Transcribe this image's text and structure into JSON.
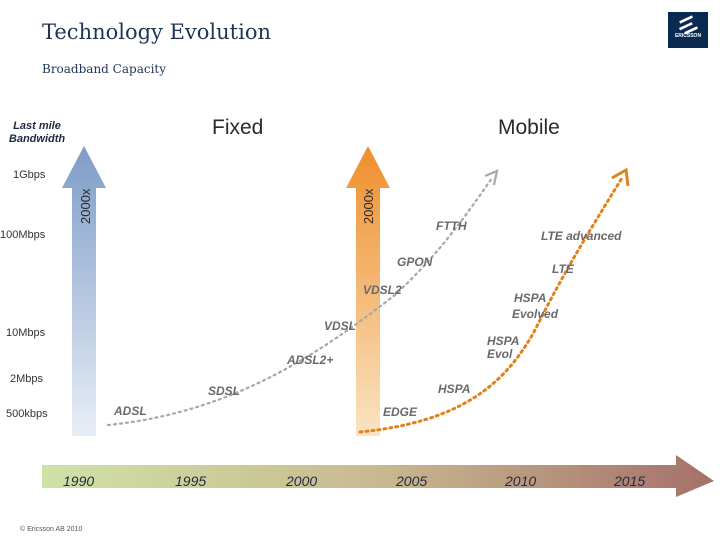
{
  "header": {
    "title": "Technology Evolution",
    "subtitle": "Broadband Capacity",
    "logo_text": "ERICSSON"
  },
  "columns": {
    "fixed": "Fixed",
    "mobile": "Mobile",
    "y_axis_title": "Last mile Bandwidth",
    "fixed_growth": "2000x",
    "mobile_growth": "2000x"
  },
  "chart_data": {
    "type": "line",
    "title": "Broadband Capacity",
    "ylabel": "Last mile Bandwidth",
    "y_ticks": [
      "1Gbps",
      "100Mbps",
      "10Mbps",
      "2Mbps",
      "500kbps"
    ],
    "x_ticks": [
      "1990",
      "1995",
      "2000",
      "2005",
      "2010",
      "2015"
    ],
    "series": [
      {
        "name": "Fixed",
        "color": "#a8a8a8",
        "technologies": [
          "ADSL",
          "SDSL",
          "ADSL2+",
          "VDSL",
          "VDSL2",
          "GPON",
          "FTTH"
        ]
      },
      {
        "name": "Mobile",
        "color": "#e0831c",
        "technologies": [
          "EDGE",
          "HSPA",
          "HSPA Evol",
          "HSPA Evolved",
          "LTE",
          "LTE advanced"
        ]
      }
    ],
    "annotations": [
      "2000x",
      "2000x"
    ]
  },
  "tech_labels": {
    "adsl": "ADSL",
    "sdsl": "SDSL",
    "adsl2plus": "ADSL2+",
    "vdsl": "VDSL",
    "vdsl2": "VDSL2",
    "gpon": "GPON",
    "ftth": "FTTH",
    "edge": "EDGE",
    "hspa": "HSPA",
    "hspa_evol_1": "HSPA",
    "hspa_evol_2": "Evol",
    "hspa_evolved_1": "HSPA",
    "hspa_evolved_2": "Evolved",
    "lte": "LTE",
    "lte_adv": "LTE advanced"
  },
  "footer": {
    "copyright": "© Ericsson AB 2010"
  },
  "colors": {
    "title": "#1f3556",
    "fixed_arrow": "#8fa9cf",
    "mobile_arrow": "#f0a04a",
    "fixed_line": "#a8a8a8",
    "mobile_line": "#e0831c",
    "timeline_start": "#c8dc9a",
    "timeline_end": "#a8736a"
  }
}
